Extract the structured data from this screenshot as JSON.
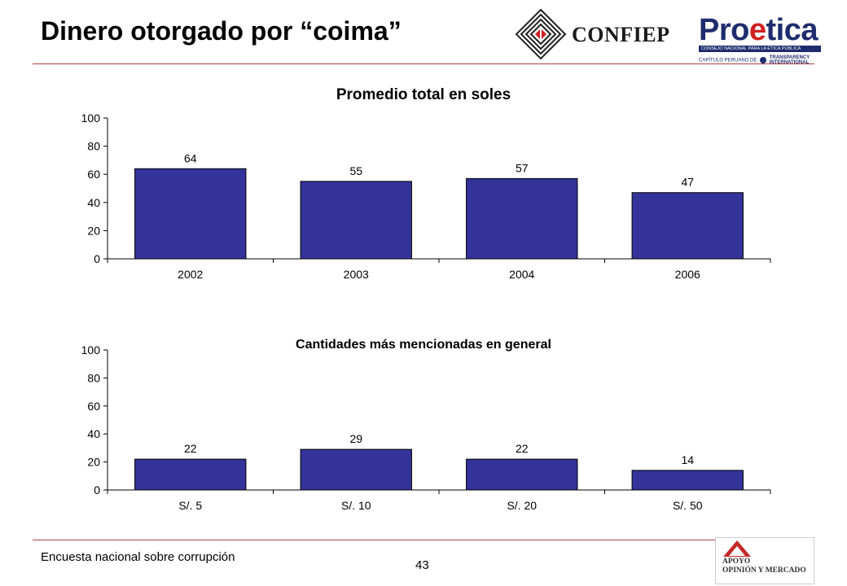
{
  "slide": {
    "title": "Dinero otorgado por “coima”",
    "footer": "Encuesta nacional sobre corrupción",
    "page_number": "43"
  },
  "logos": {
    "confiep": {
      "text": "CONFIEP"
    },
    "proetica": {
      "word_start": "Pro",
      "word_accent": "e",
      "word_end": "tica",
      "band": "CONSEJO NACIONAL PARA LA ÉTICA PÚBLICA",
      "sub_left": "CAPÍTULO PERUANO DE",
      "sub_right_1": "TRANSPARENCY",
      "sub_right_2": "INTERNATIONAL"
    },
    "apoyo": {
      "line1": "APOYO",
      "line2": "OPINIÓN Y MERCADO"
    }
  },
  "colors": {
    "bar": "#333399",
    "axis": "#000000",
    "rule": "#b04040",
    "accent_red": "#d32020",
    "brand_blue": "#1e2c6e"
  },
  "chart_data": [
    {
      "type": "bar",
      "title": "Promedio total en soles",
      "categories": [
        "2002",
        "2003",
        "2004",
        "2006"
      ],
      "values": [
        64,
        55,
        57,
        47
      ],
      "ylim": [
        0,
        100
      ],
      "yticks": [
        0,
        20,
        40,
        60,
        80,
        100
      ],
      "data_labels": true,
      "grid": false
    },
    {
      "type": "bar",
      "title": "Cantidades más mencionadas en general",
      "categories": [
        "S/. 5",
        "S/. 10",
        "S/. 20",
        "S/. 50"
      ],
      "values": [
        22,
        29,
        22,
        14
      ],
      "ylim": [
        0,
        100
      ],
      "yticks": [
        0,
        20,
        40,
        60,
        80,
        100
      ],
      "data_labels": true,
      "grid": false
    }
  ]
}
